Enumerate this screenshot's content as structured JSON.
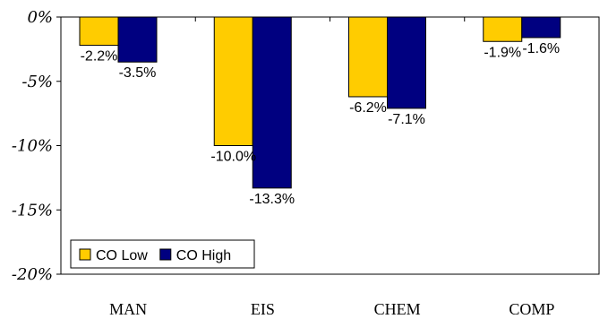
{
  "chart_data": {
    "type": "bar",
    "categories": [
      "MAN",
      "EIS",
      "CHEM",
      "COMP"
    ],
    "series": [
      {
        "name": "CO Low",
        "color": "#FFCC00",
        "values": [
          -2.2,
          -10.0,
          -6.2,
          -1.9
        ]
      },
      {
        "name": "CO High",
        "color": "#000080",
        "values": [
          -3.5,
          -13.3,
          -7.1,
          -1.6
        ]
      }
    ],
    "data_labels": [
      [
        "-2.2%",
        "-10.0%",
        "-6.2%",
        "-1.9%"
      ],
      [
        "-3.5%",
        "-13.3%",
        "-7.1%",
        "-1.6%"
      ]
    ],
    "y_ticks": [
      0,
      -5,
      -10,
      -15,
      -20
    ],
    "y_tick_labels": [
      "0%",
      "-5%",
      "-10%",
      "-15%",
      "-20%"
    ],
    "ylim": [
      -20,
      0
    ],
    "title": "",
    "xlabel": "",
    "ylabel": "",
    "grid": false,
    "legend_position": "bottom-left"
  }
}
